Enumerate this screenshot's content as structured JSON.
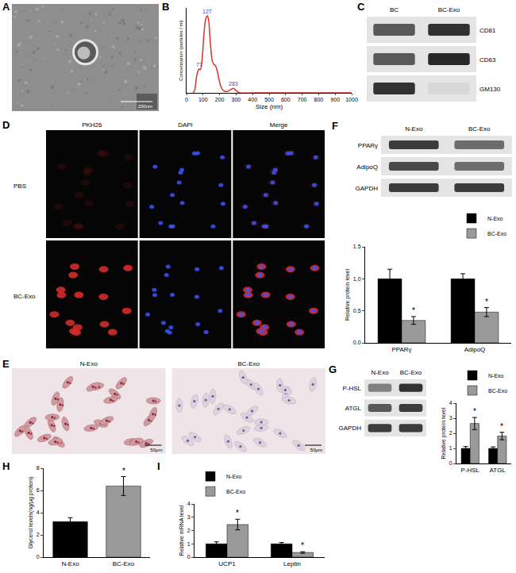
{
  "chart_data": [
    {
      "panel": "B",
      "type": "line",
      "x_label": "Size (nm)",
      "y_label": "Concentration (particles / ml)",
      "x": [
        40,
        50,
        60,
        70,
        77,
        85,
        95,
        105,
        115,
        127,
        135,
        145,
        155,
        165,
        175,
        185,
        195,
        205,
        215,
        230,
        250,
        265,
        283,
        300,
        320,
        400,
        600,
        800,
        1000
      ],
      "values": [
        0,
        0.04,
        0.2,
        0.29,
        0.31,
        0.3,
        0.45,
        0.75,
        0.95,
        1.0,
        0.92,
        0.62,
        0.42,
        0.37,
        0.35,
        0.29,
        0.19,
        0.1,
        0.05,
        0.02,
        0.02,
        0.04,
        0.06,
        0.03,
        0,
        0,
        0,
        0,
        0
      ],
      "color": "#e0302c",
      "xlim": [
        0,
        1000
      ],
      "xticks": [
        0,
        100,
        200,
        300,
        400,
        500,
        600,
        700,
        800,
        900,
        1000
      ],
      "ylim": [
        0,
        1.1
      ],
      "tick_labels": "x",
      "grid": false,
      "annotations": [
        {
          "x": 77,
          "y": 0.31,
          "text": "77"
        },
        {
          "x": 127,
          "y": 1.0,
          "text": "127"
        },
        {
          "x": 283,
          "y": 0.06,
          "text": "283"
        }
      ]
    },
    {
      "panel": "F",
      "type": "bar",
      "categories": [
        "PPARγ",
        "AdipoQ"
      ],
      "y_label": "Relative protein level",
      "series": [
        {
          "name": "N-Exo",
          "color": "#000000",
          "values": [
            1.0,
            1.0
          ],
          "errors": [
            0.15,
            0.08
          ]
        },
        {
          "name": "BC-Exo",
          "color": "#9a9a9a",
          "values": [
            0.35,
            0.48
          ],
          "errors": [
            0.06,
            0.07
          ],
          "significance": [
            "*",
            "*"
          ]
        }
      ],
      "ylim": [
        0,
        1.5
      ],
      "yticks": [
        {
          "value": 0,
          "label": "0.0"
        },
        0.5,
        {
          "value": 1,
          "label": "1.0"
        },
        1.5
      ],
      "legend": "upper right",
      "grid": false
    },
    {
      "panel": "G",
      "type": "bar",
      "categories": [
        "P-HSL",
        "ATGL"
      ],
      "y_label": "Relative protein level",
      "series": [
        {
          "name": "N-Exo",
          "color": "#000000",
          "values": [
            1.0,
            1.0
          ],
          "errors": [
            0.12,
            0.1
          ]
        },
        {
          "name": "BC-Exo",
          "color": "#9a9a9a",
          "values": [
            2.65,
            1.82
          ],
          "errors": [
            0.4,
            0.25
          ],
          "significance": [
            "*",
            "*"
          ]
        }
      ],
      "ylim": [
        0,
        4
      ],
      "yticks": [
        0,
        1,
        2,
        3,
        4
      ],
      "legend": "upper left",
      "grid": false
    },
    {
      "panel": "H",
      "type": "bar",
      "categories": [
        "N-Exo",
        "BC-Exo"
      ],
      "y_label": "Glycerol levels(ng/μg protein)",
      "values": [
        3.2,
        6.4
      ],
      "errors": [
        0.35,
        0.85
      ],
      "colors": [
        "#000000",
        "#9a9a9a"
      ],
      "significance": [
        null,
        "*"
      ],
      "ylim": [
        0,
        8
      ],
      "yticks": [
        0,
        2,
        4,
        6,
        8
      ],
      "grid": false
    },
    {
      "panel": "I",
      "type": "bar",
      "categories": [
        "UCP1",
        "Leptin"
      ],
      "y_label": "Relative mRNA level",
      "series": [
        {
          "name": "N-Exo",
          "color": "#000000",
          "values": [
            1.0,
            1.0
          ],
          "errors": [
            0.15,
            0.1
          ]
        },
        {
          "name": "BC-Exo",
          "color": "#9a9a9a",
          "values": [
            2.45,
            0.35
          ],
          "errors": [
            0.4,
            0.06
          ],
          "significance": [
            "*",
            "*"
          ]
        }
      ],
      "ylim": [
        0,
        4
      ],
      "yticks": [
        0,
        1,
        2,
        3,
        4
      ],
      "legend": "upper left",
      "grid": false
    }
  ],
  "image_panels": [
    {
      "panel": "A",
      "type": "tem",
      "scale_bar": "200nm"
    },
    {
      "panel": "C",
      "type": "blot",
      "columns": [
        "BC",
        "BC-Exo"
      ],
      "rows": [
        "CD81",
        "CD63",
        "GM130"
      ]
    },
    {
      "panel": "D",
      "type": "fluorescence",
      "columns": [
        "PKH26",
        "DAPI",
        "Merge"
      ],
      "rows": [
        "PBS",
        "BC-Exo"
      ]
    },
    {
      "panel": "E",
      "type": "stain",
      "columns": [
        "N-Exo",
        "BC-Exo"
      ],
      "scale_bar": "50μm"
    },
    {
      "panel": "F",
      "type": "blot",
      "columns": [
        "N-Exo",
        "BC-Exo"
      ],
      "rows": [
        "PPARγ",
        "AdipoQ",
        "GAPDH"
      ]
    },
    {
      "panel": "G",
      "type": "blot",
      "columns": [
        "N-Exo",
        "BC-Exo"
      ],
      "rows": [
        "P-HSL",
        "ATGL",
        "GAPDH"
      ]
    }
  ]
}
